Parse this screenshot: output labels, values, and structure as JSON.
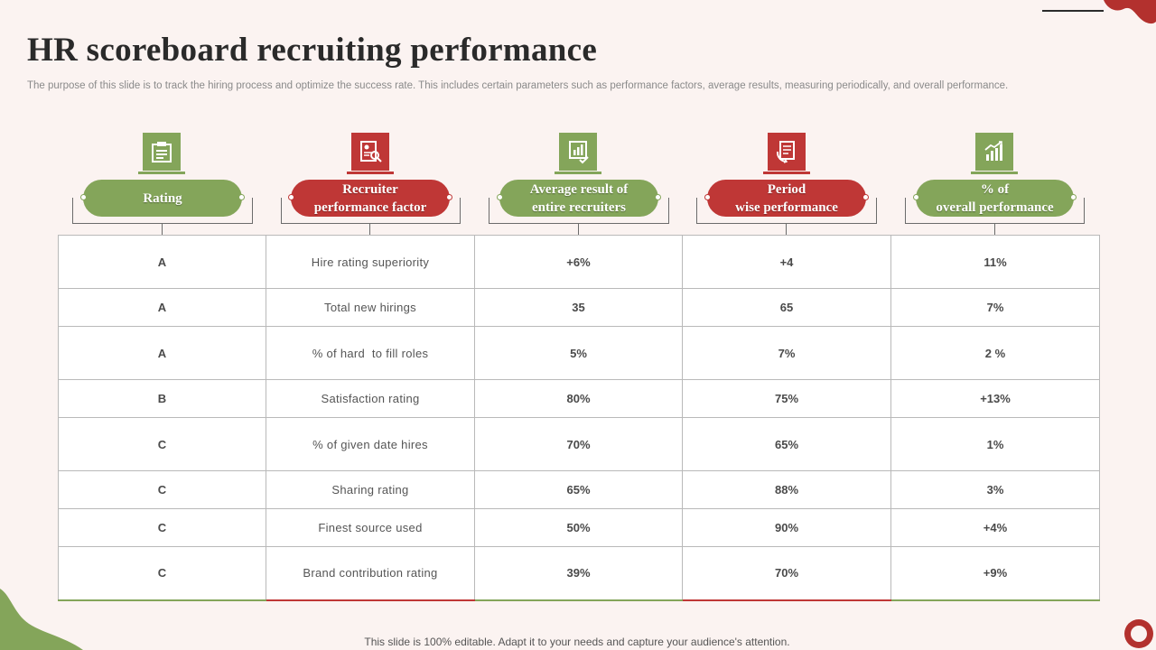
{
  "title": "HR scoreboard recruiting performance",
  "subtitle": "The purpose of this slide is to track the hiring process and optimize the success rate. This includes certain parameters such as performance factors, average results, measuring periodically, and overall performance.",
  "colors": {
    "green": "#84a55a",
    "red": "#bf3736",
    "background": "#fbf3f1"
  },
  "headers": [
    {
      "label": "Rating",
      "icon": "clipboard-icon",
      "color": "green"
    },
    {
      "label": "Recruiter\nperformance  factor",
      "icon": "resume-search-icon",
      "color": "red"
    },
    {
      "label": "Average result of\nentire recruiters",
      "icon": "presentation-chart-icon",
      "color": "green"
    },
    {
      "label": "Period\nwise performance",
      "icon": "document-refresh-icon",
      "color": "red"
    },
    {
      "label": "% of\noverall performance",
      "icon": "growth-chart-icon",
      "color": "green"
    }
  ],
  "rows": [
    [
      "A",
      "Hire rating superiority",
      "+6%",
      "+4",
      "11%"
    ],
    [
      "A",
      "Total new hirings",
      "35",
      "65",
      "7%"
    ],
    [
      "A",
      "% of hard  to fill roles",
      "5%",
      "7%",
      "2 %"
    ],
    [
      "B",
      "Satisfaction rating",
      "80%",
      "75%",
      "+13%"
    ],
    [
      "C",
      "% of given date hires",
      "70%",
      "65%",
      "1%"
    ],
    [
      "C",
      "Sharing rating",
      "65%",
      "88%",
      "3%"
    ],
    [
      "C",
      "Finest source used",
      "50%",
      "90%",
      "+4%"
    ],
    [
      "C",
      "Brand contribution rating",
      "39%",
      "70%",
      "+9%"
    ]
  ],
  "footer": "This slide is 100% editable. Adapt it to your needs and capture your audience's attention."
}
